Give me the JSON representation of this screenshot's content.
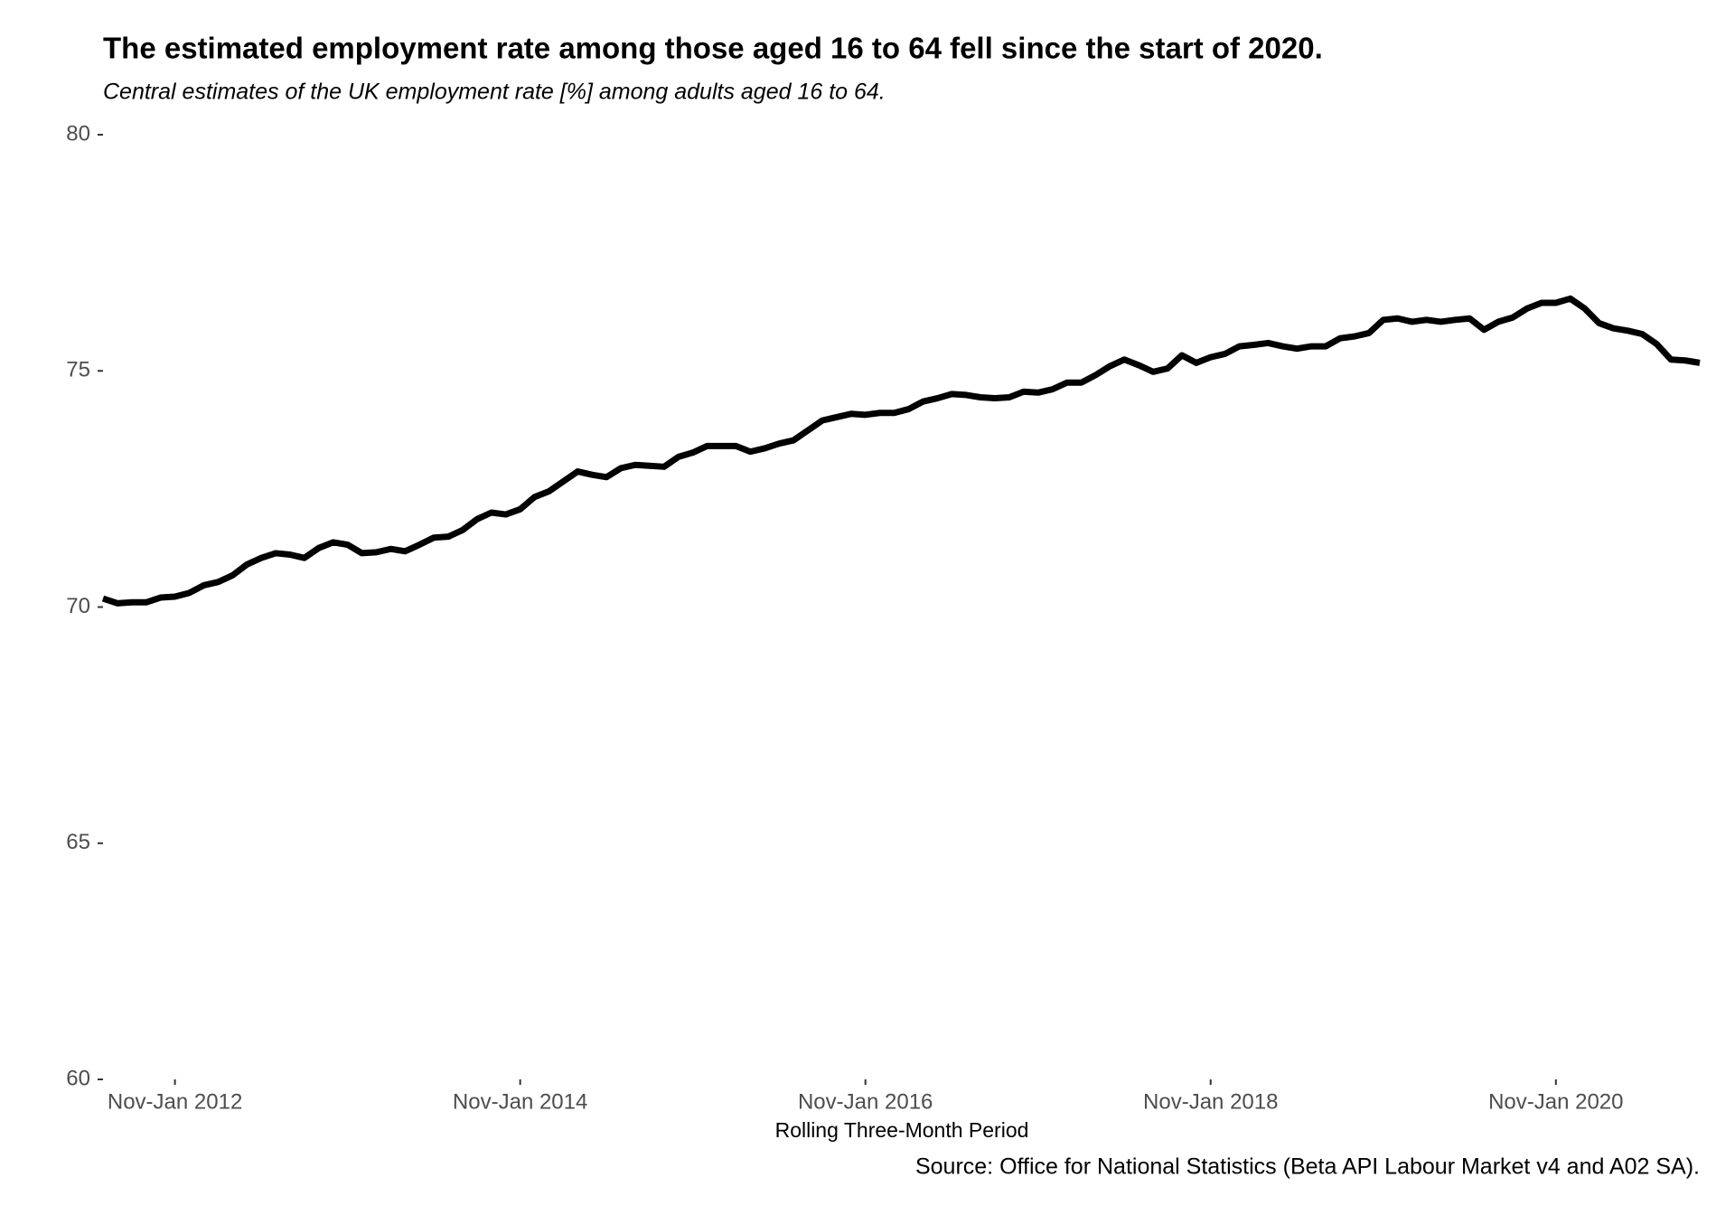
{
  "chart_data": {
    "type": "line",
    "title": "The estimated employment rate among those aged 16 to 64 fell since the start of 2020.",
    "subtitle": "Central estimates of the UK employment rate [%] among adults aged 16 to 64.",
    "x_label": "Rolling Three-Month Period",
    "source": "Source: Office for National Statistics (Beta API Labour Market v4 and A02 SA).",
    "color": "#000000",
    "categories": [
      null,
      null,
      null,
      null,
      null,
      "Nov-Jan 2012",
      null,
      null,
      null,
      null,
      null,
      null,
      null,
      null,
      null,
      null,
      null,
      null,
      null,
      null,
      null,
      null,
      null,
      null,
      null,
      null,
      null,
      null,
      null,
      "Nov-Jan 2014",
      null,
      null,
      null,
      null,
      null,
      null,
      null,
      null,
      null,
      null,
      null,
      null,
      null,
      null,
      null,
      null,
      null,
      null,
      null,
      null,
      null,
      null,
      null,
      "Nov-Jan 2016",
      null,
      null,
      null,
      null,
      null,
      null,
      null,
      null,
      null,
      null,
      null,
      null,
      null,
      null,
      null,
      null,
      null,
      null,
      null,
      null,
      null,
      null,
      null,
      "Nov-Jan 2018",
      null,
      null,
      null,
      null,
      null,
      null,
      null,
      null,
      null,
      null,
      null,
      null,
      null,
      null,
      null,
      null,
      null,
      null,
      null,
      null,
      null,
      null,
      null,
      "Nov-Jan 2020",
      null,
      null,
      null,
      null,
      null,
      null,
      null,
      null,
      null,
      null
    ],
    "values": [
      70.18,
      70.08,
      70.1,
      70.1,
      70.2,
      70.22,
      70.3,
      70.46,
      70.53,
      70.67,
      70.9,
      71.04,
      71.14,
      71.11,
      71.04,
      71.25,
      71.37,
      71.32,
      71.14,
      71.16,
      71.23,
      71.18,
      71.32,
      71.47,
      71.49,
      71.63,
      71.86,
      72.0,
      71.96,
      72.07,
      72.33,
      72.45,
      72.66,
      72.87,
      72.8,
      72.75,
      72.94,
      73.01,
      72.99,
      72.97,
      73.18,
      73.27,
      73.41,
      73.41,
      73.41,
      73.29,
      73.36,
      73.46,
      73.53,
      73.74,
      73.95,
      74.02,
      74.09,
      74.07,
      74.11,
      74.11,
      74.19,
      74.35,
      74.42,
      74.51,
      74.49,
      74.44,
      74.42,
      74.44,
      74.56,
      74.54,
      74.61,
      74.75,
      74.75,
      74.91,
      75.1,
      75.24,
      75.12,
      74.98,
      75.05,
      75.33,
      75.17,
      75.29,
      75.36,
      75.52,
      75.55,
      75.59,
      75.52,
      75.47,
      75.52,
      75.52,
      75.69,
      75.73,
      75.8,
      76.08,
      76.11,
      76.04,
      76.08,
      76.04,
      76.08,
      76.11,
      75.87,
      76.04,
      76.13,
      76.32,
      76.44,
      76.44,
      76.53,
      76.32,
      76.01,
      75.9,
      75.85,
      75.78,
      75.57,
      75.24,
      75.22,
      75.17
    ],
    "ylim": [
      60,
      80
    ],
    "yticks": [
      60,
      65,
      70,
      75,
      80
    ],
    "grid": false
  }
}
